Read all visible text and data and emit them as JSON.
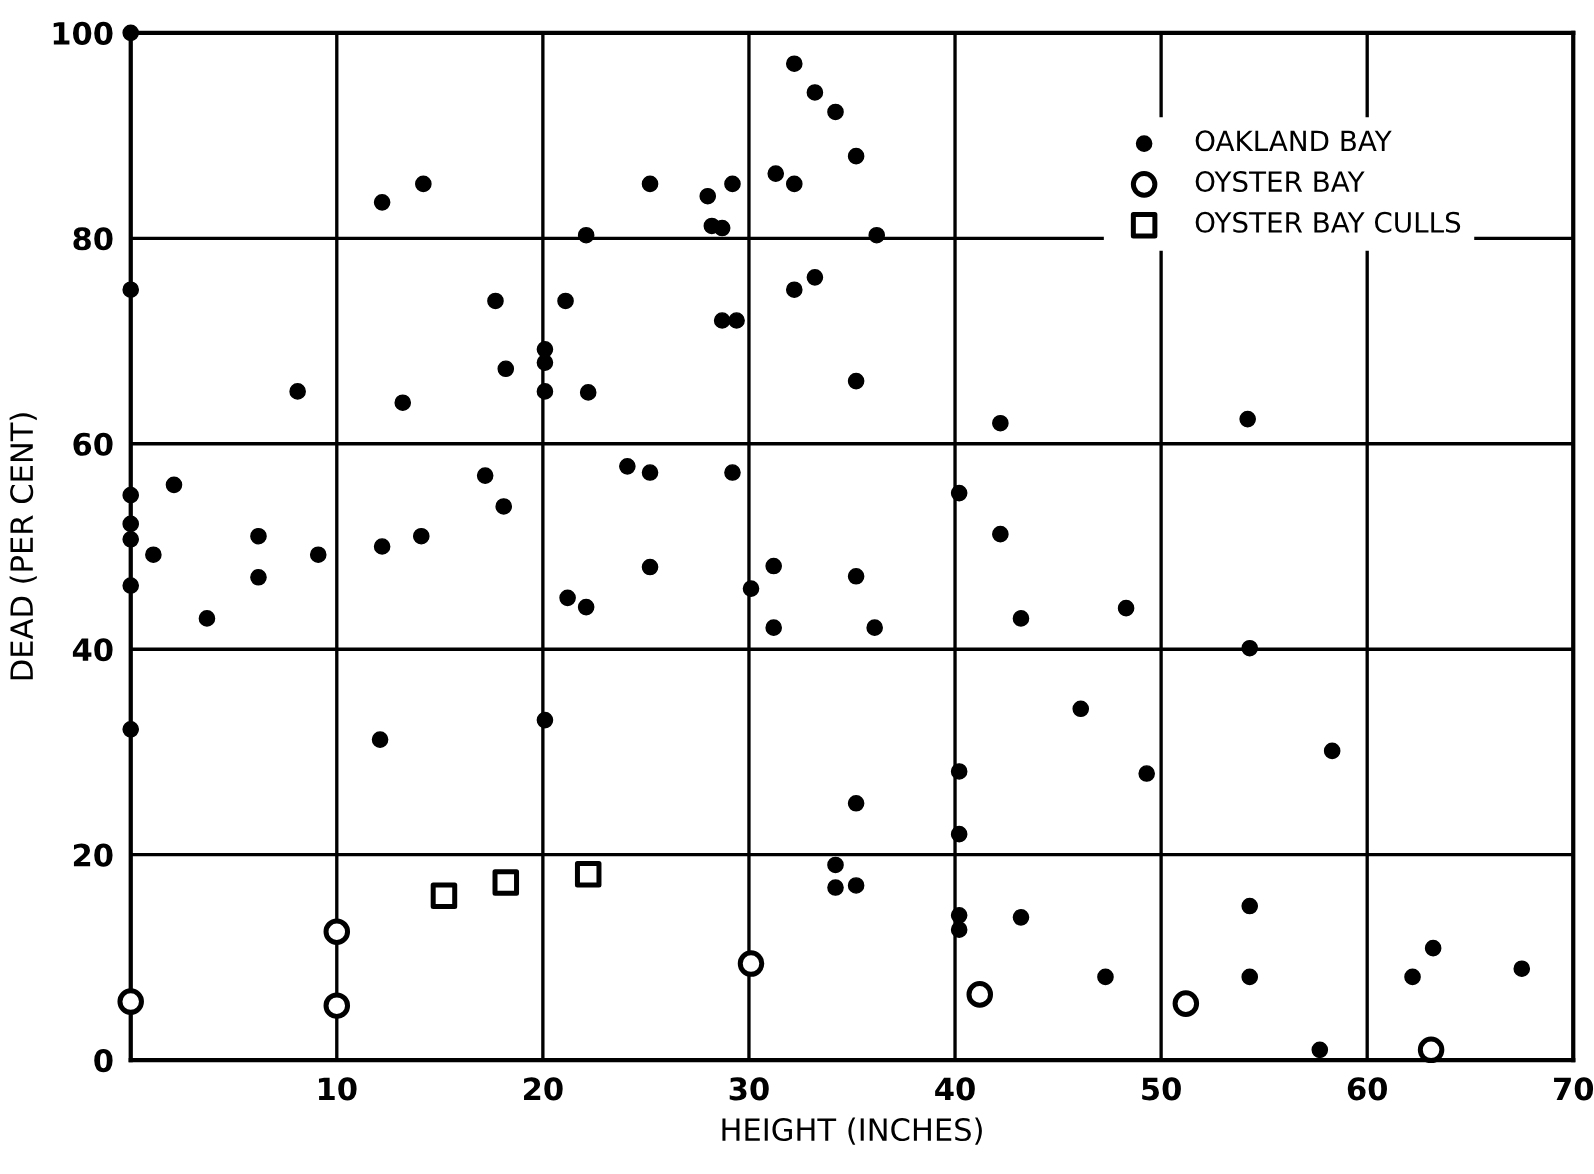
{
  "chart_data": {
    "type": "scatter",
    "xlabel": "HEIGHT (INCHES)",
    "ylabel": "DEAD (PER CENT)",
    "xlim": [
      0,
      70
    ],
    "ylim": [
      0,
      100
    ],
    "xticks": [
      {
        "value": 0,
        "label": null
      },
      10,
      20,
      30,
      40,
      50,
      60,
      70
    ],
    "yticks": [
      0,
      20,
      40,
      60,
      80,
      100
    ],
    "grid": true,
    "legend": "top right",
    "series": [
      {
        "name": "OAKLAND BAY",
        "color": "#000000",
        "marker": "circle",
        "x": [
          0,
          0,
          0,
          0,
          0,
          0,
          0,
          1.1,
          2.1,
          3.7,
          6.2,
          6.2,
          8.1,
          9.1,
          12.2,
          12.1,
          13.2,
          14.2,
          12.2,
          14.1,
          17.7,
          17.2,
          18.2,
          18.1,
          20.1,
          20.1,
          20.1,
          20.1,
          21.1,
          21.2,
          22.1,
          22.2,
          22.1,
          24.1,
          25.2,
          25.2,
          25.2,
          28.0,
          28.2,
          28.7,
          28.7,
          29.2,
          29.2,
          29.4,
          30.1,
          31.2,
          31.2,
          31.3,
          32.2,
          32.2,
          32.2,
          33.2,
          33.2,
          34.2,
          34.2,
          34.2,
          35.2,
          35.2,
          35.2,
          35.2,
          35.2,
          36.2,
          36.1,
          40.2,
          40.2,
          40.2,
          40.2,
          40.2,
          42.2,
          42.2,
          43.2,
          43.2,
          46.1,
          47.3,
          48.3,
          49.3,
          54.2,
          54.3,
          54.3,
          54.3,
          57.7,
          58.3,
          62.2,
          63.2,
          67.5
        ],
        "values": [
          100,
          75,
          55,
          52.2,
          50.7,
          46.2,
          32.2,
          49.2,
          56,
          43,
          51,
          47,
          65.1,
          49.2,
          83.5,
          31.2,
          64,
          85.3,
          50,
          51,
          73.9,
          56.9,
          67.3,
          53.9,
          69.2,
          67.9,
          65.1,
          33.1,
          73.9,
          45,
          80.3,
          65,
          44.1,
          57.8,
          85.3,
          57.2,
          48,
          84.1,
          81.2,
          81,
          72,
          85.3,
          57.2,
          72,
          45.9,
          48.1,
          42.1,
          86.3,
          97,
          85.3,
          75,
          94.2,
          76.2,
          92.3,
          19,
          16.8,
          88,
          66.1,
          47.1,
          25,
          17,
          80.3,
          42.1,
          55.2,
          28.1,
          22,
          14.1,
          12.7,
          62,
          51.2,
          43,
          13.9,
          34.2,
          8.1,
          44,
          27.9,
          62.4,
          40.1,
          15,
          8.1,
          1,
          30.1,
          8.1,
          10.9,
          8.9
        ]
      },
      {
        "name": "OYSTER BAY",
        "color": "#000000",
        "marker": "circle",
        "x": [
          0,
          10,
          10,
          30.1,
          41.2,
          51.2,
          63.1
        ],
        "values": [
          5.7,
          12.5,
          5.3,
          9.4,
          6.4,
          5.5,
          1
        ]
      },
      {
        "name": "OYSTER BAY CULLS",
        "color": "#000000",
        "marker": "square",
        "x": [
          15.2,
          18.2,
          22.2
        ],
        "values": [
          16,
          17.3,
          18.1
        ]
      }
    ]
  }
}
